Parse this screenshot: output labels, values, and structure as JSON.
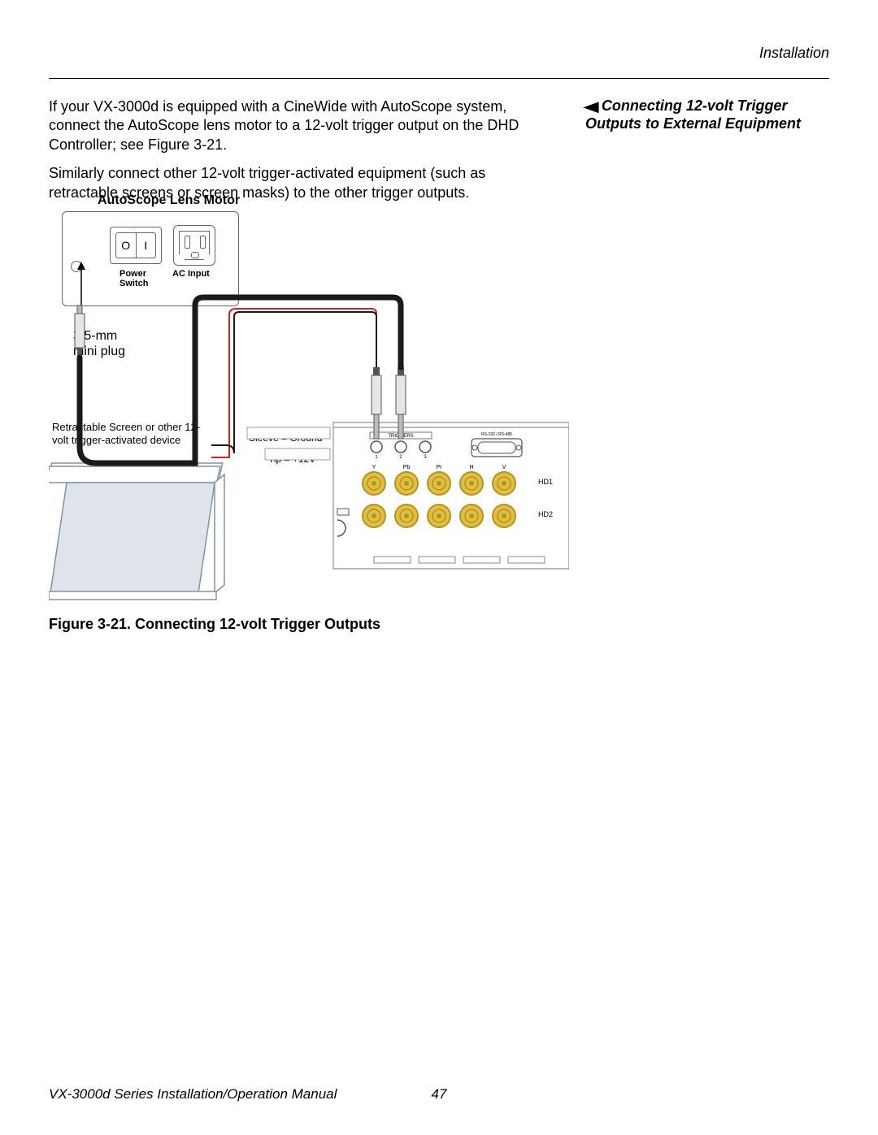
{
  "meta": {
    "running_head": "Installation",
    "footer_title": "VX-3000d Series Installation/Operation Manual",
    "page_number": "47"
  },
  "body": {
    "p1": "If your VX-3000d is equipped with a CineWide with AutoScope system, connect the AutoScope lens motor to a 12-volt trigger output on the DHD Controller; see Figure 3-21.",
    "p2": "Similarly connect other 12-volt trigger-activated equipment (such as retractable screens or screen masks) to the other trigger outputs."
  },
  "sidebar": {
    "heading": "Connecting 12-volt Trigger Outputs to External Equipment"
  },
  "figure": {
    "title": "AutoScope Lens Motor",
    "power_switch_label_1": "Power",
    "power_switch_label_2": "Switch",
    "ac_label": "AC Input",
    "switch_o": "O",
    "switch_i": "I",
    "plug_label_1": "3.5-mm",
    "plug_label_2": "mini plug",
    "screen_note": "Retractable Screen or other 12-volt trigger-activated device",
    "sleeve_label": "Sleeve = Ground",
    "tip_label": "Tip = +12V",
    "panel_triggers": "TRIGGERS",
    "panel_rs": "RS-232 / RS-485",
    "hd1": "HD1",
    "hd2": "HD2",
    "row_labels": [
      "Y",
      "Pb",
      "Pr",
      "H",
      "V"
    ],
    "trigger_nums": [
      "1",
      "2",
      "3"
    ],
    "caption": "Figure 3-21. Connecting 12-volt Trigger Outputs",
    "colors": {
      "rca": "#e0c040",
      "rca_ring": "#b89020",
      "cable_black": "#1a1a1a",
      "cable_red": "#d81e1e",
      "screen_fill": "#dfe4ea",
      "outline": "#555555"
    }
  }
}
